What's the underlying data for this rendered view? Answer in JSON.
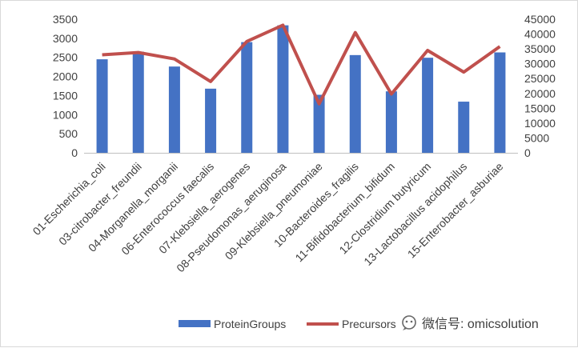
{
  "chart_data": {
    "type": "bar",
    "categories": [
      "01-Escherichia_coli",
      "03-citrobacter_freundii",
      "04-Morganella_morganii",
      "06-Enterococcus faecalis",
      "07-Klebsiella_aerogenes",
      "08-Pseudomonas_aeruginosa",
      "09-Klebsiella_pneumoniae",
      "10-Bacteroides_fragilis",
      "11-Bifidobacterium_bifidum",
      "12-Clostridium butyricum",
      "13-Lactobacillus acidophilus",
      "15-Enterobacter_asburiae"
    ],
    "series": [
      {
        "name": "ProteinGroups",
        "type": "bar",
        "axis": "left",
        "color": "#4472c4",
        "values": [
          2450,
          2650,
          2260,
          1680,
          2900,
          3340,
          1520,
          2560,
          1610,
          2490,
          1340,
          2630
        ]
      },
      {
        "name": "Precursors",
        "type": "line",
        "axis": "right",
        "color": "#c0504d",
        "values": [
          33000,
          33800,
          31600,
          24000,
          37500,
          43000,
          16500,
          40500,
          19800,
          34500,
          27200,
          35800
        ]
      }
    ],
    "y_left": {
      "min": 0,
      "max": 3500,
      "step": 500,
      "ticks": [
        "0",
        "500",
        "1000",
        "1500",
        "2000",
        "2500",
        "3000",
        "3500"
      ]
    },
    "y_right": {
      "min": 0,
      "max": 45000,
      "step": 5000,
      "ticks": [
        "0",
        "5000",
        "10000",
        "15000",
        "20000",
        "25000",
        "30000",
        "35000",
        "40000",
        "45000"
      ]
    },
    "title": "",
    "xlabel": "",
    "ylabel": "",
    "grid": false,
    "legend_position": "bottom"
  },
  "watermark": {
    "icon": "wechat-icon",
    "text": "微信号: omicsolution"
  }
}
